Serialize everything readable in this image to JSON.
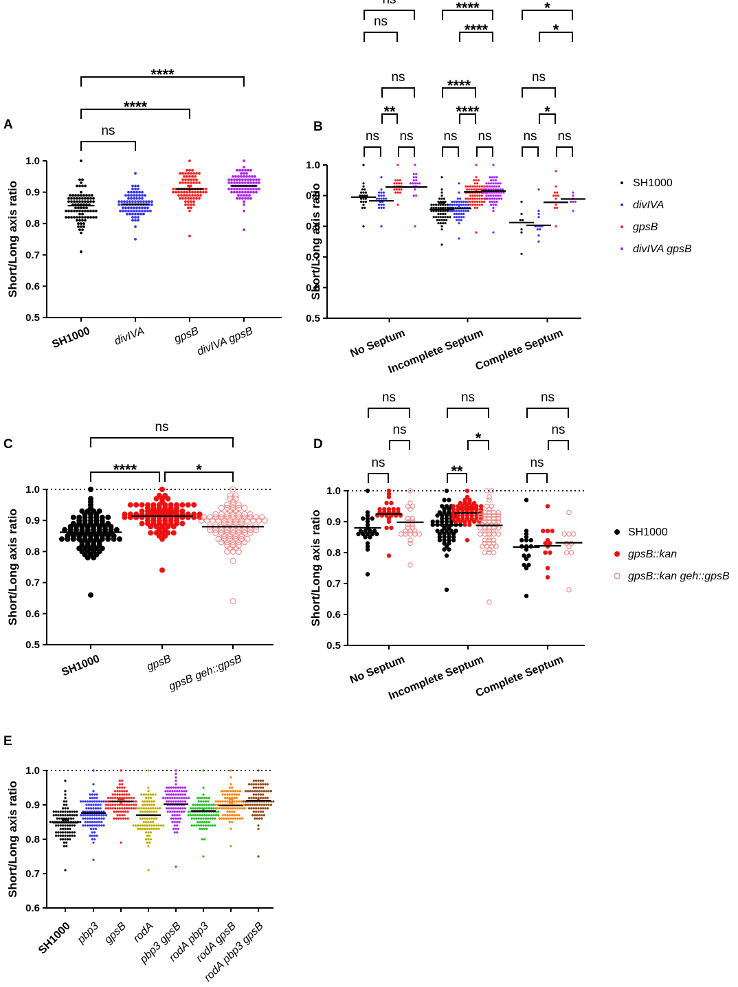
{
  "figure": {
    "description": "Short/Long axis ratio of Staphylococcus aureus cells, five panels"
  },
  "chart_data": [
    {
      "type": "scatter",
      "panel_label": "A",
      "ylabel": "Short/Long axis ratio",
      "ylim": [
        0.5,
        1.0
      ],
      "yticks": [
        "0.5",
        "0.6",
        "0.7",
        "0.8",
        "0.9",
        "1.0"
      ],
      "reference_line": null,
      "categories": [
        {
          "label": "SH1000",
          "style": "bold",
          "color": "#000000",
          "hollow": false,
          "median": 0.857,
          "n": 90,
          "min": 0.705,
          "max": 1.0
        },
        {
          "label": "divIVA",
          "style": "italic",
          "color": "#3333ee",
          "hollow": false,
          "median": 0.861,
          "n": 90,
          "min": 0.75,
          "max": 0.96
        },
        {
          "label": "gpsB",
          "style": "italic",
          "color": "#ee2222",
          "hollow": false,
          "median": 0.91,
          "n": 90,
          "min": 0.755,
          "max": 1.0
        },
        {
          "label": "divIVA gpsB",
          "style": "italic",
          "color": "#aa22ee",
          "hollow": false,
          "median": 0.92,
          "n": 90,
          "min": 0.775,
          "max": 1.0
        }
      ],
      "comparisons": [
        {
          "from": 0,
          "to": 1,
          "label": "ns"
        },
        {
          "from": 0,
          "to": 2,
          "label": "****"
        },
        {
          "from": 0,
          "to": 3,
          "label": "****"
        }
      ]
    },
    {
      "type": "scatter",
      "panel_label": "B",
      "ylabel": "Short/Long axis ratio",
      "ylim": [
        0.5,
        1.0
      ],
      "yticks": [
        "0.5",
        "0.6",
        "0.7",
        "0.8",
        "0.9",
        "1.0"
      ],
      "reference_line": null,
      "groups": [
        "No Septum",
        "Incomplete Septum",
        "Complete Septum"
      ],
      "series": [
        {
          "name": "SH1000",
          "color": "#000000",
          "hollow": false,
          "style": "normal"
        },
        {
          "name": "divIVA",
          "color": "#3333ee",
          "hollow": false,
          "style": "italic"
        },
        {
          "name": "gpsB",
          "color": "#ee2222",
          "hollow": false,
          "style": "italic"
        },
        {
          "name": "divIVA gpsB",
          "color": "#aa22ee",
          "hollow": false,
          "style": "italic"
        }
      ],
      "medians": [
        [
          0.895,
          0.883,
          0.928,
          0.928
        ],
        [
          0.855,
          0.858,
          0.912,
          0.915
        ],
        [
          0.812,
          0.803,
          0.878,
          0.889
        ]
      ],
      "counts": [
        [
          22,
          22,
          20,
          18
        ],
        [
          70,
          55,
          70,
          65
        ],
        [
          7,
          12,
          12,
          7
        ]
      ],
      "ranges": [
        [
          [
            0.8,
            1.0
          ],
          [
            0.8,
            0.955
          ],
          [
            0.865,
            1.0
          ],
          [
            0.8,
            1.0
          ]
        ],
        [
          [
            0.735,
            0.955
          ],
          [
            0.76,
            0.94
          ],
          [
            0.78,
            1.0
          ],
          [
            0.775,
            1.0
          ]
        ],
        [
          [
            0.705,
            0.88
          ],
          [
            0.75,
            0.92
          ],
          [
            0.8,
            0.98
          ],
          [
            0.85,
            0.91
          ]
        ]
      ],
      "comparisons": [
        {
          "group": 0,
          "from": 0,
          "to": 1,
          "label": "ns"
        },
        {
          "group": 0,
          "from": 2,
          "to": 3,
          "label": "ns"
        },
        {
          "group": 0,
          "from": 1,
          "to": 2,
          "label": "**"
        },
        {
          "group": 0,
          "from": 1,
          "to": 3,
          "label": "ns"
        },
        {
          "group": 0,
          "from": 0,
          "to": 2,
          "label": "ns"
        },
        {
          "group": 0,
          "from": 0,
          "to": 3,
          "label": "ns"
        },
        {
          "group": 1,
          "from": 0,
          "to": 1,
          "label": "ns"
        },
        {
          "group": 1,
          "from": 2,
          "to": 3,
          "label": "ns"
        },
        {
          "group": 1,
          "from": 1,
          "to": 2,
          "label": "****"
        },
        {
          "group": 1,
          "from": 0,
          "to": 2,
          "label": "****"
        },
        {
          "group": 1,
          "from": 1,
          "to": 3,
          "label": "****"
        },
        {
          "group": 1,
          "from": 0,
          "to": 3,
          "label": "****"
        },
        {
          "group": 2,
          "from": 0,
          "to": 1,
          "label": "ns"
        },
        {
          "group": 2,
          "from": 2,
          "to": 3,
          "label": "ns"
        },
        {
          "group": 2,
          "from": 1,
          "to": 2,
          "label": "*"
        },
        {
          "group": 2,
          "from": 0,
          "to": 2,
          "label": "ns"
        },
        {
          "group": 2,
          "from": 1,
          "to": 3,
          "label": "*"
        },
        {
          "group": 2,
          "from": 0,
          "to": 3,
          "label": "*"
        }
      ]
    },
    {
      "type": "scatter",
      "panel_label": "C",
      "ylabel": "Short/Long axis ratio",
      "ylim": [
        0.5,
        1.0
      ],
      "yticks": [
        "0.5",
        "0.6",
        "0.7",
        "0.8",
        "0.9",
        "1.0"
      ],
      "reference_line": 1.0,
      "categories": [
        {
          "label": "SH1000",
          "style": "bold",
          "color": "#000000",
          "hollow": false,
          "median": 0.862,
          "n": 100,
          "min": 0.66,
          "max": 1.0
        },
        {
          "label": "gpsB",
          "style": "italic",
          "color": "#ee1111",
          "hollow": false,
          "median": 0.914,
          "n": 100,
          "min": 0.74,
          "max": 1.0
        },
        {
          "label": "gpsB geh::gpsB",
          "style": "italic",
          "color": "#f08080",
          "hollow": true,
          "median": 0.88,
          "n": 100,
          "min": 0.64,
          "max": 1.0
        }
      ],
      "comparisons": [
        {
          "from": 0,
          "to": 1,
          "label": "****"
        },
        {
          "from": 1,
          "to": 2,
          "label": "*"
        },
        {
          "from": 0,
          "to": 2,
          "label": "ns"
        }
      ]
    },
    {
      "type": "scatter",
      "panel_label": "D",
      "ylabel": "Short/Long axis ratio",
      "ylim": [
        0.5,
        1.0
      ],
      "yticks": [
        "0.5",
        "0.6",
        "0.7",
        "0.8",
        "0.9",
        "1.0"
      ],
      "reference_line": 1.0,
      "groups": [
        "No Septum",
        "Incomplete Septum",
        "Complete Septum"
      ],
      "series": [
        {
          "name": "SH1000",
          "color": "#000000",
          "hollow": false,
          "style": "normal"
        },
        {
          "name": "gpsB::kan",
          "color": "#ee1111",
          "hollow": false,
          "style": "italic"
        },
        {
          "name": "gpsB::kan geh::gpsB",
          "color": "#f08080",
          "hollow": true,
          "style": "italic"
        }
      ],
      "medians": [
        [
          0.88,
          0.925,
          0.898
        ],
        [
          0.89,
          0.928,
          0.888
        ],
        [
          0.818,
          0.822,
          0.832
        ]
      ],
      "counts": [
        [
          24,
          26,
          24
        ],
        [
          60,
          60,
          60
        ],
        [
          18,
          12,
          10
        ]
      ],
      "ranges": [
        [
          [
            0.73,
            1.0
          ],
          [
            0.79,
            1.0
          ],
          [
            0.76,
            1.0
          ]
        ],
        [
          [
            0.68,
            1.0
          ],
          [
            0.84,
            1.0
          ],
          [
            0.64,
            1.0
          ]
        ],
        [
          [
            0.66,
            0.97
          ],
          [
            0.72,
            0.945
          ],
          [
            0.68,
            0.93
          ]
        ]
      ],
      "comparisons": [
        {
          "group": 0,
          "from": 0,
          "to": 1,
          "label": "ns"
        },
        {
          "group": 0,
          "from": 1,
          "to": 2,
          "label": "ns"
        },
        {
          "group": 0,
          "from": 0,
          "to": 2,
          "label": "ns"
        },
        {
          "group": 1,
          "from": 0,
          "to": 1,
          "label": "**"
        },
        {
          "group": 1,
          "from": 1,
          "to": 2,
          "label": "*"
        },
        {
          "group": 1,
          "from": 0,
          "to": 2,
          "label": "ns"
        },
        {
          "group": 2,
          "from": 0,
          "to": 1,
          "label": "ns"
        },
        {
          "group": 2,
          "from": 1,
          "to": 2,
          "label": "ns"
        },
        {
          "group": 2,
          "from": 0,
          "to": 2,
          "label": "ns"
        }
      ]
    },
    {
      "type": "scatter",
      "panel_label": "E",
      "ylabel": "Short/Long axis ratio",
      "ylim": [
        0.6,
        1.0
      ],
      "yticks": [
        "0.6",
        "0.7",
        "0.8",
        "0.9",
        "1.0"
      ],
      "reference_line": 1.0,
      "categories": [
        {
          "label": "SH1000",
          "style": "bold",
          "color": "#000000",
          "hollow": false,
          "median": 0.848,
          "n": 100,
          "min": 0.705,
          "max": 0.965
        },
        {
          "label": "pbp3",
          "style": "italic",
          "color": "#3333ee",
          "hollow": false,
          "median": 0.876,
          "n": 100,
          "min": 0.74,
          "max": 1.0
        },
        {
          "label": "gpsB",
          "style": "italic",
          "color": "#ee2222",
          "hollow": false,
          "median": 0.91,
          "n": 100,
          "min": 0.79,
          "max": 1.0
        },
        {
          "label": "rodA",
          "style": "italic",
          "color": "#bbaa00",
          "hollow": false,
          "median": 0.87,
          "n": 100,
          "min": 0.705,
          "max": 1.0
        },
        {
          "label": "pbp3 gpsB",
          "style": "italic",
          "color": "#aa22ee",
          "hollow": false,
          "median": 0.902,
          "n": 100,
          "min": 0.715,
          "max": 1.0
        },
        {
          "label": "rodA pbp3",
          "style": "italic",
          "color": "#22bb22",
          "hollow": false,
          "median": 0.882,
          "n": 100,
          "min": 0.75,
          "max": 1.0
        },
        {
          "label": "rodA gpsB",
          "style": "italic",
          "color": "#ff7f00",
          "hollow": false,
          "median": 0.898,
          "n": 100,
          "min": 0.78,
          "max": 1.0
        },
        {
          "label": "rodA pbp3 gpsB",
          "style": "italic",
          "color": "#8b4513",
          "hollow": false,
          "median": 0.912,
          "n": 100,
          "min": 0.75,
          "max": 1.0
        }
      ],
      "comparisons": []
    }
  ]
}
